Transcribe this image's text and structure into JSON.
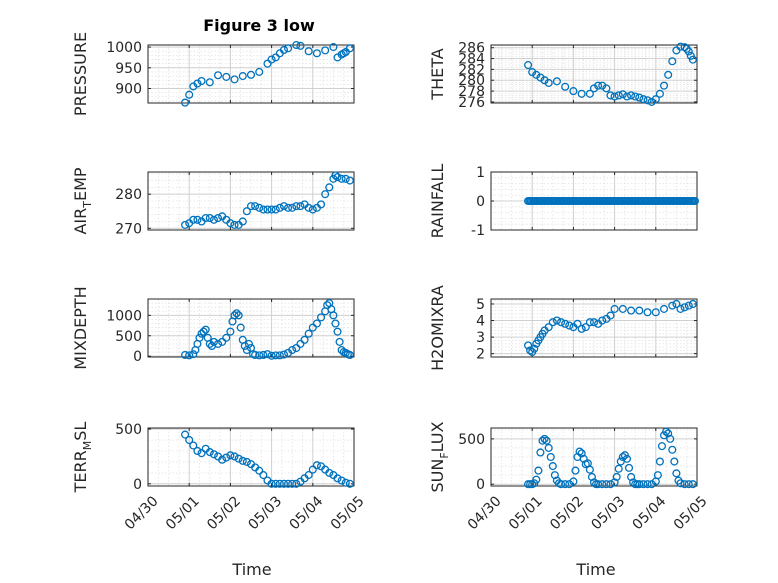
{
  "figure": {
    "title": "Figure 3 low",
    "xlabel": "Time",
    "x_ticks": [
      "04/30",
      "05/01",
      "05/02",
      "05/03",
      "05/04",
      "05/05"
    ],
    "marker_color": "#0072bd"
  },
  "chart_data": [
    {
      "type": "scatter",
      "ylabel": "PRESSURE",
      "x_axis": {
        "type": "date",
        "range": [
          "04/30",
          "05/05"
        ],
        "ticklabels_shown": false
      },
      "ylim": [
        865,
        1005
      ],
      "yticks": [
        900,
        950,
        1000
      ],
      "grid": true,
      "series": [
        {
          "x": [
            0.9,
            1.0,
            1.1,
            1.2,
            1.3,
            1.5,
            1.7,
            1.9,
            2.1,
            2.3,
            2.5,
            2.7,
            2.9,
            3.0,
            3.1,
            3.2,
            3.3,
            3.4,
            3.6,
            3.7,
            3.9,
            4.1,
            4.3,
            4.5,
            4.6,
            4.7,
            4.75,
            4.8,
            4.9
          ],
          "y": [
            866,
            885,
            905,
            912,
            918,
            915,
            932,
            928,
            922,
            930,
            933,
            940,
            960,
            970,
            975,
            985,
            993,
            997,
            1005,
            1003,
            990,
            985,
            992,
            1000,
            975,
            982,
            985,
            988,
            997
          ]
        }
      ]
    },
    {
      "type": "scatter",
      "ylabel": "THETA",
      "x_axis": {
        "type": "date",
        "range": [
          "04/30",
          "05/05"
        ],
        "ticklabels_shown": false
      },
      "ylim": [
        275.8,
        286.5
      ],
      "yticks": [
        276,
        278,
        280,
        282,
        284,
        286
      ],
      "grid": true,
      "series": [
        {
          "x": [
            0.9,
            1.0,
            1.1,
            1.2,
            1.3,
            1.4,
            1.6,
            1.8,
            2.0,
            2.2,
            2.4,
            2.5,
            2.6,
            2.7,
            2.8,
            2.9,
            3.0,
            3.1,
            3.2,
            3.3,
            3.4,
            3.5,
            3.6,
            3.7,
            3.8,
            3.9,
            4.0,
            4.1,
            4.2,
            4.3,
            4.4,
            4.5,
            4.6,
            4.7,
            4.75,
            4.8,
            4.85,
            4.9
          ],
          "y": [
            282.8,
            281.5,
            281,
            280.5,
            280,
            279.5,
            279.8,
            278.8,
            278,
            277.5,
            277.5,
            278.5,
            279,
            279,
            278.5,
            277.2,
            277,
            277.2,
            277.4,
            277,
            277.2,
            277,
            276.8,
            276.5,
            276.3,
            276,
            276.5,
            277.5,
            279,
            281,
            283.5,
            285.5,
            286.2,
            286.1,
            285.8,
            285.3,
            284.5,
            283.8
          ]
        }
      ]
    },
    {
      "type": "scatter",
      "ylabel": "AIR_TEMP",
      "x_axis": {
        "type": "date",
        "range": [
          "04/30",
          "05/05"
        ],
        "ticklabels_shown": false
      },
      "ylim": [
        269.5,
        286.5
      ],
      "yticks": [
        270,
        280
      ],
      "grid": true,
      "series": [
        {
          "x": [
            0.9,
            1.0,
            1.1,
            1.2,
            1.3,
            1.4,
            1.5,
            1.6,
            1.7,
            1.8,
            1.9,
            2.0,
            2.1,
            2.2,
            2.3,
            2.4,
            2.5,
            2.6,
            2.7,
            2.8,
            2.9,
            3.0,
            3.1,
            3.2,
            3.3,
            3.4,
            3.5,
            3.6,
            3.7,
            3.8,
            3.9,
            4.0,
            4.1,
            4.2,
            4.3,
            4.4,
            4.5,
            4.55,
            4.6,
            4.7,
            4.8,
            4.9
          ],
          "y": [
            271,
            271.5,
            272.5,
            272.5,
            272,
            273,
            273,
            272.5,
            273,
            273.5,
            272.5,
            271.5,
            271,
            271,
            272,
            275,
            276.5,
            276.5,
            276,
            275.5,
            275.5,
            275.5,
            275.5,
            276,
            276.5,
            276,
            276,
            276.5,
            276.5,
            277,
            276,
            275.5,
            276,
            277,
            280,
            282,
            284.5,
            285.5,
            285,
            284.5,
            284.5,
            284
          ]
        }
      ]
    },
    {
      "type": "scatter",
      "ylabel": "RAINFALL",
      "x_axis": {
        "type": "date",
        "range": [
          "04/30",
          "05/05"
        ],
        "ticklabels_shown": false
      },
      "ylim": [
        -1,
        1
      ],
      "yticks": [
        -1,
        0,
        1
      ],
      "grid": true,
      "series": [
        {
          "x_range": [
            0.9,
            4.95
          ],
          "count": 120,
          "y_constant": 0
        }
      ]
    },
    {
      "type": "scatter",
      "ylabel": "MIXDEPTH",
      "x_axis": {
        "type": "date",
        "range": [
          "04/30",
          "05/05"
        ],
        "ticklabels_shown": false
      },
      "ylim": [
        -20,
        1400
      ],
      "yticks": [
        0,
        500,
        1000
      ],
      "grid": true,
      "series": [
        {
          "x": [
            0.9,
            1.0,
            1.1,
            1.15,
            1.2,
            1.25,
            1.3,
            1.35,
            1.4,
            1.45,
            1.5,
            1.55,
            1.6,
            1.7,
            1.8,
            1.9,
            2.0,
            2.05,
            2.1,
            2.15,
            2.2,
            2.25,
            2.3,
            2.35,
            2.4,
            2.45,
            2.5,
            2.55,
            2.6,
            2.7,
            2.8,
            2.9,
            3.0,
            3.1,
            3.2,
            3.3,
            3.4,
            3.5,
            3.6,
            3.7,
            3.8,
            3.9,
            4.0,
            4.1,
            4.2,
            4.3,
            4.35,
            4.4,
            4.45,
            4.5,
            4.55,
            4.6,
            4.65,
            4.7,
            4.75,
            4.8,
            4.85,
            4.9
          ],
          "y": [
            30,
            20,
            50,
            150,
            300,
            450,
            550,
            600,
            650,
            450,
            300,
            250,
            350,
            300,
            350,
            450,
            600,
            850,
            1000,
            1050,
            1000,
            700,
            400,
            250,
            150,
            300,
            200,
            50,
            30,
            20,
            30,
            50,
            10,
            20,
            20,
            40,
            80,
            150,
            200,
            300,
            400,
            550,
            700,
            800,
            950,
            1100,
            1250,
            1300,
            1150,
            1000,
            800,
            600,
            350,
            150,
            100,
            80,
            50,
            30
          ]
        }
      ]
    },
    {
      "type": "scatter",
      "ylabel": "H2OMIXRA",
      "x_axis": {
        "type": "date",
        "range": [
          "04/30",
          "05/05"
        ],
        "ticklabels_shown": false
      },
      "ylim": [
        1.8,
        5.3
      ],
      "yticks": [
        2,
        3,
        4,
        5
      ],
      "grid": true,
      "series": [
        {
          "x": [
            0.9,
            0.95,
            1.0,
            1.05,
            1.1,
            1.15,
            1.2,
            1.25,
            1.3,
            1.4,
            1.5,
            1.6,
            1.7,
            1.8,
            1.9,
            2.0,
            2.1,
            2.2,
            2.3,
            2.4,
            2.5,
            2.6,
            2.7,
            2.8,
            2.9,
            3.0,
            3.2,
            3.4,
            3.6,
            3.8,
            4.0,
            4.2,
            4.4,
            4.5,
            4.6,
            4.7,
            4.8,
            4.9
          ],
          "y": [
            2.5,
            2.2,
            2.1,
            2.3,
            2.6,
            2.8,
            3,
            3.2,
            3.4,
            3.6,
            3.9,
            4,
            3.9,
            3.8,
            3.7,
            3.6,
            3.8,
            3.5,
            3.6,
            3.9,
            3.9,
            3.8,
            4,
            4.1,
            4.3,
            4.7,
            4.7,
            4.6,
            4.6,
            4.5,
            4.5,
            4.7,
            4.9,
            5,
            4.7,
            4.8,
            4.9,
            5
          ]
        }
      ]
    },
    {
      "type": "scatter",
      "ylabel": "TERR_MSL",
      "x_axis": {
        "type": "date",
        "range": [
          "04/30",
          "05/05"
        ],
        "ticklabels_shown": true
      },
      "ylim": [
        -20,
        510
      ],
      "yticks": [
        0,
        500
      ],
      "grid": true,
      "series": [
        {
          "x": [
            0.9,
            1.0,
            1.1,
            1.2,
            1.3,
            1.4,
            1.5,
            1.6,
            1.7,
            1.8,
            1.9,
            2.0,
            2.1,
            2.2,
            2.3,
            2.4,
            2.5,
            2.6,
            2.7,
            2.8,
            2.9,
            3.0,
            3.1,
            3.2,
            3.3,
            3.4,
            3.5,
            3.6,
            3.7,
            3.8,
            3.9,
            4.0,
            4.1,
            4.2,
            4.3,
            4.4,
            4.5,
            4.6,
            4.7,
            4.8,
            4.9
          ],
          "y": [
            450,
            400,
            350,
            300,
            280,
            320,
            290,
            270,
            250,
            220,
            240,
            260,
            250,
            230,
            210,
            200,
            180,
            150,
            120,
            80,
            30,
            0,
            0,
            0,
            0,
            0,
            0,
            0,
            20,
            50,
            80,
            130,
            170,
            160,
            130,
            100,
            80,
            50,
            30,
            10,
            0
          ]
        }
      ]
    },
    {
      "type": "scatter",
      "ylabel": "SUN_FLUX",
      "x_axis": {
        "type": "date",
        "range": [
          "04/30",
          "05/05"
        ],
        "ticklabels_shown": true
      },
      "ylim": [
        -20,
        620
      ],
      "yticks": [
        0,
        500
      ],
      "grid": true,
      "series": [
        {
          "x": [
            0.9,
            0.95,
            1.0,
            1.05,
            1.1,
            1.15,
            1.2,
            1.25,
            1.3,
            1.35,
            1.4,
            1.45,
            1.5,
            1.55,
            1.6,
            1.65,
            1.7,
            1.8,
            1.9,
            2.0,
            2.05,
            2.1,
            2.15,
            2.2,
            2.25,
            2.3,
            2.35,
            2.4,
            2.45,
            2.5,
            2.55,
            2.6,
            2.7,
            2.8,
            2.9,
            3.0,
            3.05,
            3.1,
            3.15,
            3.2,
            3.25,
            3.3,
            3.35,
            3.4,
            3.45,
            3.5,
            3.55,
            3.6,
            3.7,
            3.8,
            3.9,
            4.0,
            4.05,
            4.1,
            4.15,
            4.2,
            4.25,
            4.3,
            4.35,
            4.4,
            4.45,
            4.5,
            4.55,
            4.6,
            4.7,
            4.8,
            4.9
          ],
          "y": [
            0,
            0,
            0,
            10,
            50,
            150,
            350,
            480,
            500,
            480,
            400,
            300,
            200,
            100,
            40,
            10,
            0,
            0,
            0,
            30,
            150,
            300,
            360,
            340,
            280,
            220,
            230,
            160,
            80,
            20,
            0,
            0,
            0,
            0,
            0,
            20,
            80,
            170,
            250,
            300,
            320,
            280,
            180,
            80,
            20,
            0,
            0,
            0,
            0,
            0,
            0,
            30,
            100,
            250,
            420,
            540,
            580,
            560,
            500,
            380,
            250,
            120,
            40,
            10,
            0,
            0,
            0
          ]
        }
      ]
    }
  ]
}
